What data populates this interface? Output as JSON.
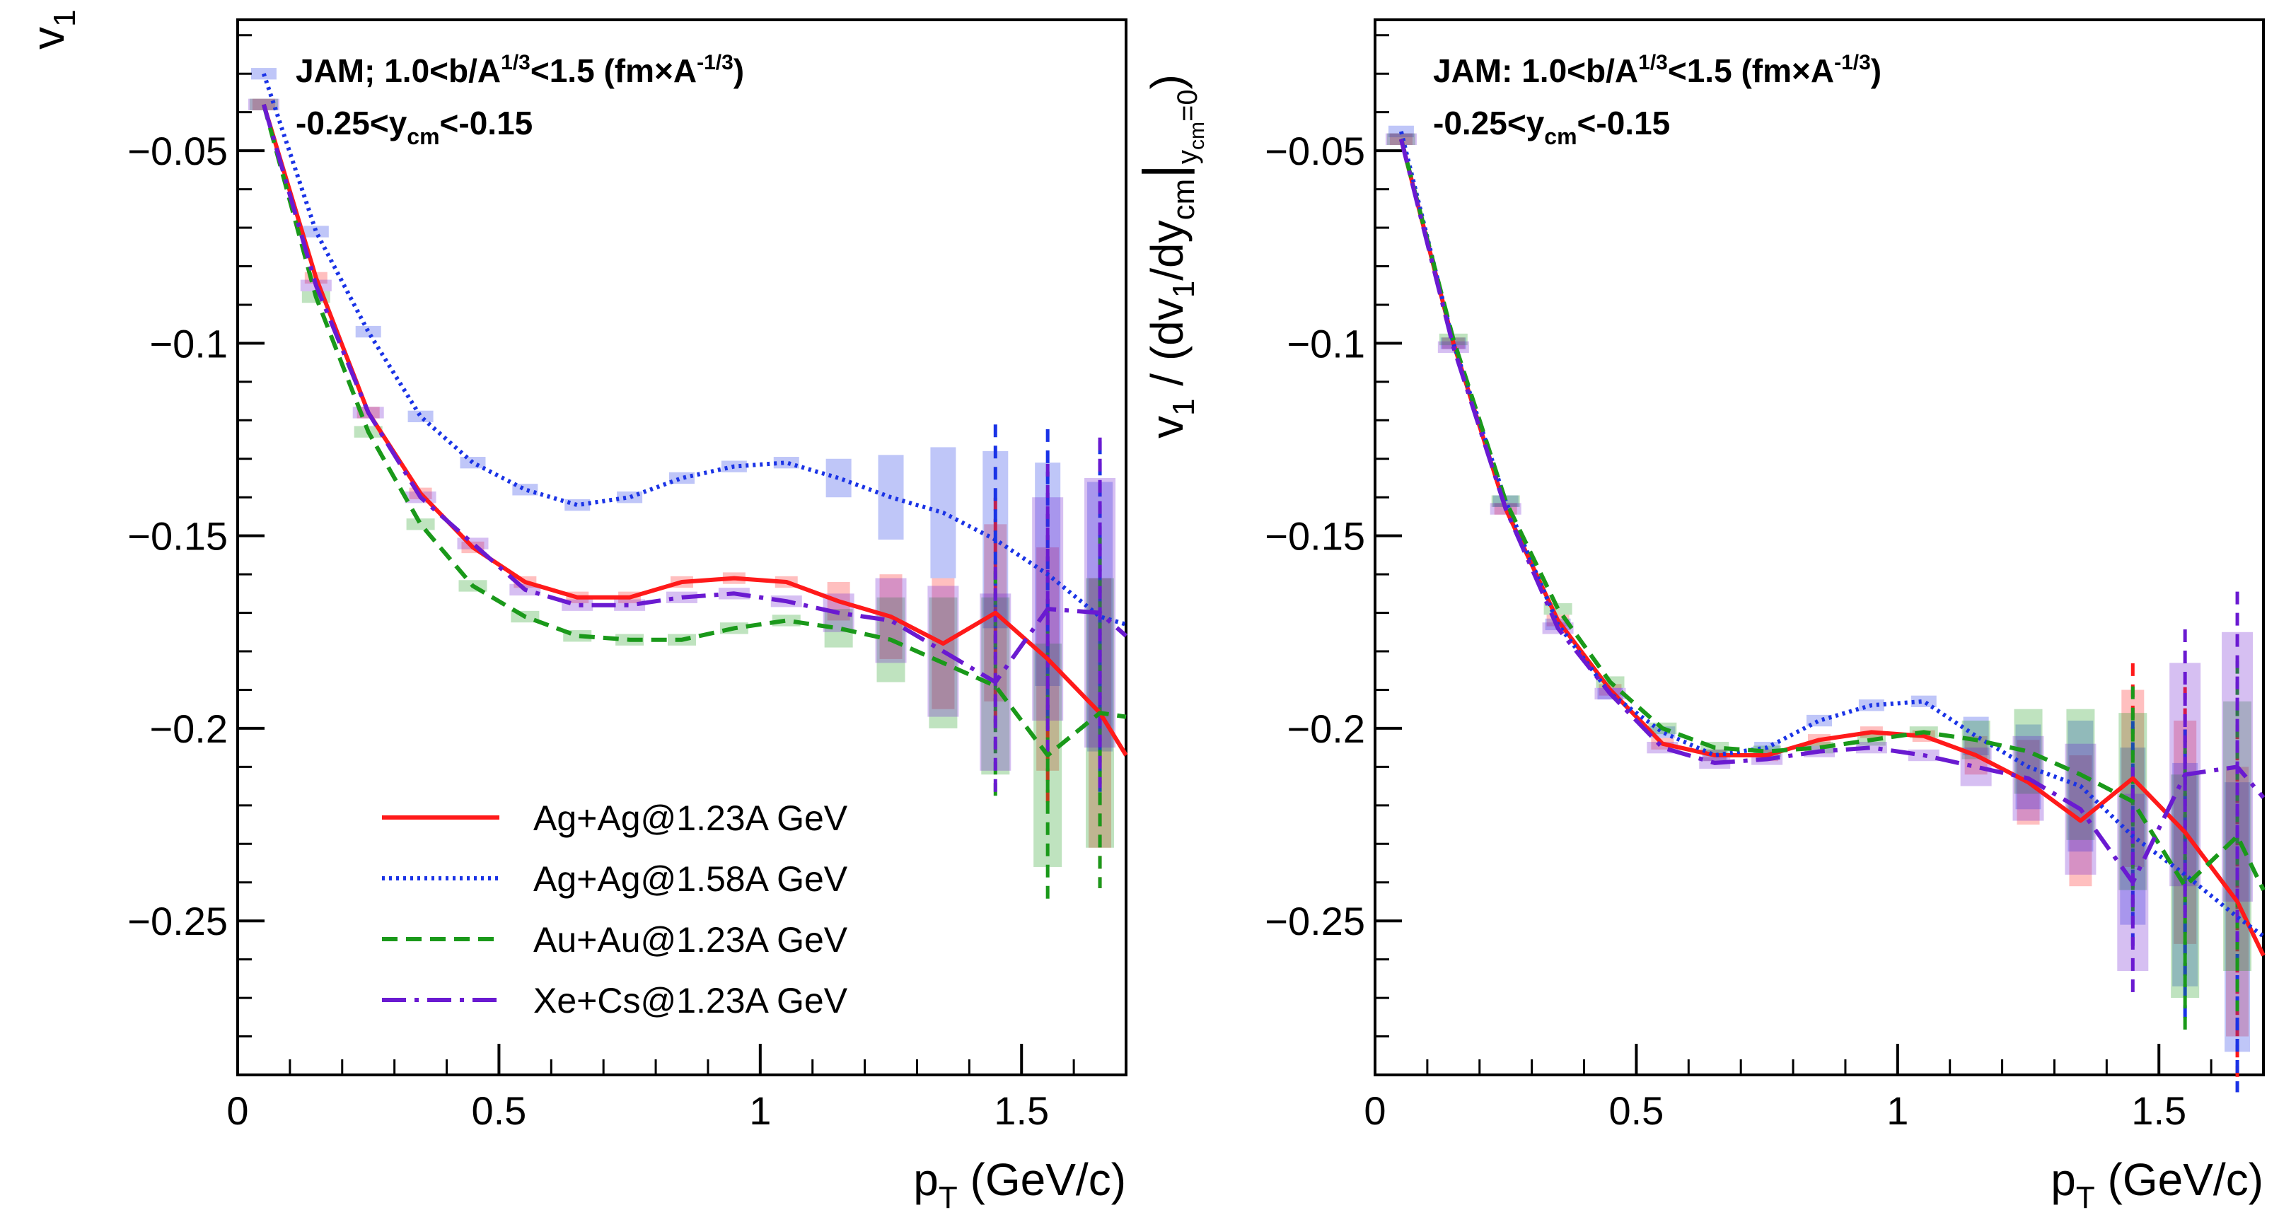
{
  "chart_data": [
    {
      "type": "line",
      "panel": "left",
      "ylabel": "v_1",
      "xlabel": "p_T (GeV/c)",
      "xlim": [
        0,
        1.7
      ],
      "ylim": [
        -0.29,
        -0.016
      ],
      "xticks": [
        0,
        0.5,
        1,
        1.5
      ],
      "xtick_labels": [
        "0",
        "0.5",
        "1",
        "1.5"
      ],
      "yticks": [
        -0.05,
        -0.1,
        -0.15,
        -0.2,
        -0.25
      ],
      "ytick_labels": [
        "−0.05",
        "−0.1",
        "−0.15",
        "−0.2",
        "−0.25"
      ],
      "annotations": [
        "JAM; 1.0<b/A¹ᐟ³<1.5 (fm×A⁻¹ᐟ³)",
        "-0.25<y_cm<-0.15"
      ],
      "annotation_line1": {
        "main": "JAM; 1.0<b/A",
        "sup1": "1/3",
        "mid": "<1.5 (fm×A",
        "sup2": "-1/3",
        "end": ")"
      },
      "annotation_line2": {
        "main": "-0.25<y",
        "sub": "cm",
        "end": "<-0.15"
      },
      "x": [
        0.05,
        0.15,
        0.25,
        0.35,
        0.45,
        0.55,
        0.65,
        0.75,
        0.85,
        0.95,
        1.05,
        1.15,
        1.25,
        1.35,
        1.45,
        1.55,
        1.65,
        1.7
      ],
      "series": [
        {
          "name": "Ag+Ag@1.23A GeV",
          "color": "#ff1a1a",
          "style": "solid",
          "values": [
            -0.038,
            -0.083,
            -0.118,
            -0.139,
            -0.153,
            -0.162,
            -0.166,
            -0.166,
            -0.162,
            -0.161,
            -0.162,
            -0.167,
            -0.171,
            -0.178,
            -0.17,
            -0.182,
            -0.196,
            -0.207
          ]
        },
        {
          "name": "Ag+Ag@1.58A GeV",
          "color": "#1a33e6",
          "style": "dotted",
          "values": [
            -0.03,
            -0.071,
            -0.097,
            -0.119,
            -0.131,
            -0.138,
            -0.142,
            -0.14,
            -0.135,
            -0.132,
            -0.131,
            -0.135,
            -0.14,
            -0.144,
            -0.151,
            -0.16,
            -0.171,
            -0.173
          ]
        },
        {
          "name": "Au+Au@1.23A GeV",
          "color": "#1a991a",
          "style": "dashed",
          "values": [
            -0.038,
            -0.088,
            -0.123,
            -0.147,
            -0.163,
            -0.171,
            -0.176,
            -0.177,
            -0.177,
            -0.174,
            -0.172,
            -0.174,
            -0.177,
            -0.183,
            -0.189,
            -0.207,
            -0.196,
            -0.197
          ]
        },
        {
          "name": "Xe+Cs@1.23A GeV",
          "color": "#6a1ad1",
          "style": "dashdot",
          "values": [
            -0.038,
            -0.085,
            -0.118,
            -0.14,
            -0.152,
            -0.164,
            -0.168,
            -0.168,
            -0.166,
            -0.165,
            -0.167,
            -0.17,
            -0.172,
            -0.18,
            -0.188,
            -0.169,
            -0.17,
            -0.176
          ]
        }
      ]
    },
    {
      "type": "line",
      "panel": "right",
      "ylabel": "v_1 / (dv_1/dy_cm|_{y_cm=0})",
      "ylabel_parts": {
        "a": "v",
        "b": "1",
        "c": " / (dv",
        "d": "1",
        "e": "/dy",
        "f": "cm",
        "g": "|",
        "h": "y",
        "i": "cm",
        "j": "=0",
        "k": ")"
      },
      "xlabel": "p_T (GeV/c)",
      "xlim": [
        0,
        1.7
      ],
      "ylim": [
        -0.29,
        -0.016
      ],
      "xticks": [
        0,
        0.5,
        1,
        1.5
      ],
      "xtick_labels": [
        "0",
        "0.5",
        "1",
        "1.5"
      ],
      "yticks": [
        -0.05,
        -0.1,
        -0.15,
        -0.2,
        -0.25
      ],
      "ytick_labels": [
        "−0.05",
        "−0.1",
        "−0.15",
        "−0.2",
        "−0.25"
      ],
      "annotation_line1": {
        "main": "JAM: 1.0<b/A",
        "sup1": "1/3",
        "mid": "<1.5 (fm×A",
        "sup2": "-1/3",
        "end": ")"
      },
      "annotation_line2": {
        "main": "-0.25<y",
        "sub": "cm",
        "end": "<-0.15"
      },
      "x": [
        0.05,
        0.15,
        0.25,
        0.35,
        0.45,
        0.55,
        0.65,
        0.75,
        0.85,
        0.95,
        1.05,
        1.15,
        1.25,
        1.35,
        1.45,
        1.55,
        1.65,
        1.7
      ],
      "series": [
        {
          "name": "Ag+Ag@1.23A GeV",
          "color": "#ff1a1a",
          "style": "solid",
          "values": [
            -0.047,
            -0.1,
            -0.143,
            -0.172,
            -0.19,
            -0.204,
            -0.207,
            -0.207,
            -0.203,
            -0.201,
            -0.202,
            -0.207,
            -0.214,
            -0.224,
            -0.213,
            -0.227,
            -0.245,
            -0.259
          ]
        },
        {
          "name": "Ag+Ag@1.58A GeV",
          "color": "#1a33e6",
          "style": "dotted",
          "values": [
            -0.045,
            -0.1,
            -0.141,
            -0.173,
            -0.191,
            -0.201,
            -0.207,
            -0.205,
            -0.198,
            -0.194,
            -0.193,
            -0.202,
            -0.21,
            -0.215,
            -0.228,
            -0.238,
            -0.249,
            -0.254
          ]
        },
        {
          "name": "Au+Au@1.23A GeV",
          "color": "#1a991a",
          "style": "dashed",
          "values": [
            -0.047,
            -0.099,
            -0.141,
            -0.169,
            -0.188,
            -0.2,
            -0.205,
            -0.206,
            -0.205,
            -0.203,
            -0.201,
            -0.203,
            -0.206,
            -0.212,
            -0.219,
            -0.241,
            -0.228,
            -0.242
          ]
        },
        {
          "name": "Xe+Cs@1.23A GeV",
          "color": "#6a1ad1",
          "style": "dashdot",
          "values": [
            -0.047,
            -0.101,
            -0.143,
            -0.174,
            -0.191,
            -0.205,
            -0.209,
            -0.208,
            -0.206,
            -0.205,
            -0.207,
            -0.21,
            -0.213,
            -0.221,
            -0.24,
            -0.212,
            -0.21,
            -0.218
          ]
        }
      ]
    }
  ],
  "legend": {
    "placement": "bottom-left of left panel",
    "entries": [
      "Ag+Ag@1.23A GeV",
      "Ag+Ag@1.58A GeV",
      "Au+Au@1.23A GeV",
      "Xe+Cs@1.23A GeV"
    ]
  },
  "left_ylabel": {
    "main": "v",
    "sub": "1"
  },
  "xlabel_parts": {
    "main": "p",
    "sub": "T",
    "unit": " (GeV/c)"
  }
}
